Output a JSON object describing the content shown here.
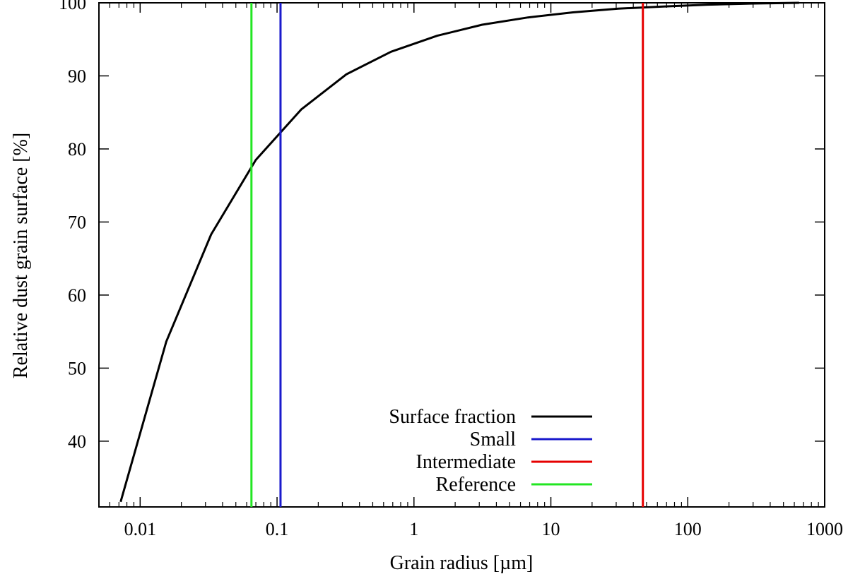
{
  "chart_data": {
    "type": "line",
    "title": "",
    "xlabel": "Grain radius [µm]",
    "ylabel": "Relative dust grain surface [%]",
    "xscale": "log",
    "xlim": [
      0.005,
      1000
    ],
    "ylim": [
      31,
      100
    ],
    "x_ticks": [
      0.01,
      0.1,
      1,
      10,
      100,
      1000
    ],
    "x_tick_labels": [
      "0.01",
      "0.1",
      "1",
      "10",
      "100",
      "1000"
    ],
    "y_ticks": [
      40,
      50,
      60,
      70,
      80,
      90,
      100
    ],
    "y_tick_labels": [
      "40",
      "50",
      "60",
      "70",
      "80",
      "90",
      "100"
    ],
    "grid": false,
    "legend_position": "bottom-center",
    "series": [
      {
        "name": "Surface fraction",
        "color": "#000000",
        "kind": "curve",
        "x": [
          0.0072,
          0.0155,
          0.033,
          0.07,
          0.15,
          0.32,
          0.68,
          1.48,
          3.15,
          6.8,
          14.5,
          31,
          66,
          140,
          300,
          650
        ],
        "y": [
          31.7,
          53.6,
          68.3,
          78.5,
          85.4,
          90.2,
          93.3,
          95.5,
          97.0,
          98.0,
          98.7,
          99.2,
          99.5,
          99.75,
          99.9,
          100.0
        ]
      },
      {
        "name": "Small",
        "color": "#1a1acc",
        "kind": "vline",
        "x": 0.106
      },
      {
        "name": "Intermediate",
        "color": "#e60000",
        "kind": "vline",
        "x": 47
      },
      {
        "name": "Reference",
        "color": "#22e622",
        "kind": "vline",
        "x": 0.065
      }
    ]
  }
}
